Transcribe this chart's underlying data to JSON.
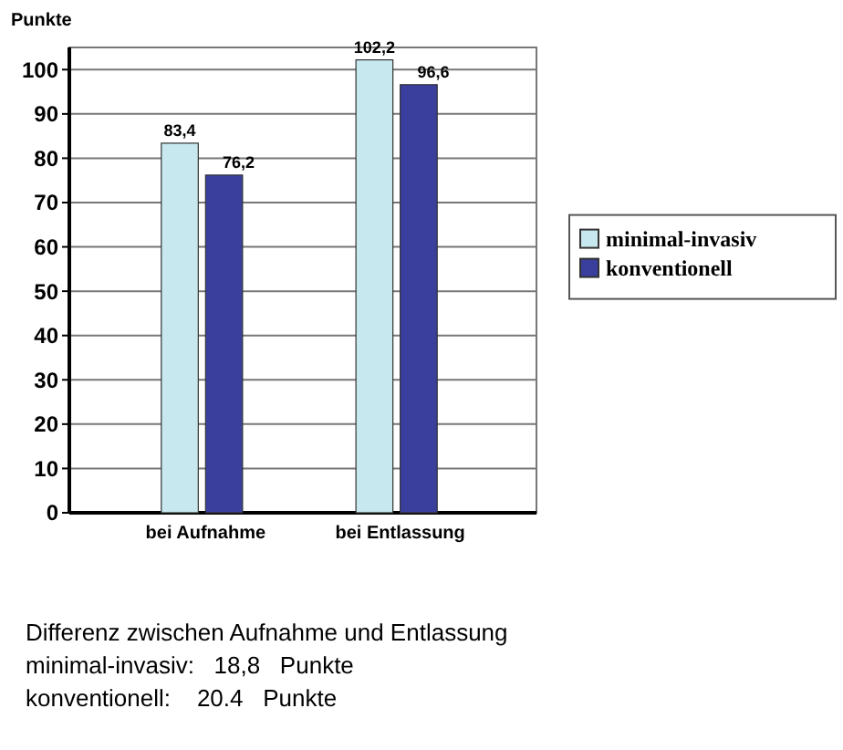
{
  "chart_data": {
    "type": "bar",
    "ylabel": "Punkte",
    "categories": [
      "bei Aufnahme",
      "bei Entlassung"
    ],
    "series": [
      {
        "name": "minimal-invasiv",
        "color": "#c6e8ee",
        "values": [
          83.4,
          102.2
        ],
        "value_labels": [
          "83,4",
          "102,2"
        ]
      },
      {
        "name": "konventionell",
        "color": "#3a3f9e",
        "values": [
          76.2,
          96.6
        ],
        "value_labels": [
          "76,2",
          "96,6"
        ]
      }
    ],
    "ylim": [
      0,
      105
    ],
    "yticks": [
      0,
      10,
      20,
      30,
      40,
      50,
      60,
      70,
      80,
      90,
      100
    ],
    "grid": "y",
    "legend": "right",
    "annotations": [
      "Differenz zwischen Aufnahme und Entlassung",
      "minimal-invasiv:   18,8   Punkte",
      "konventionell:    20.4   Punkte"
    ]
  }
}
